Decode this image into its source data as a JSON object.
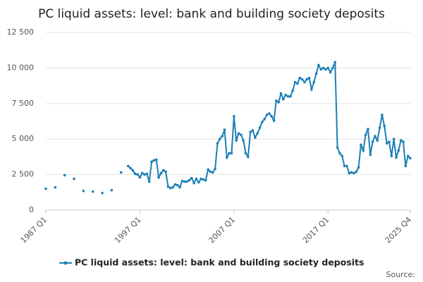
{
  "chart_data": {
    "type": "line",
    "title": "PC liquid assets: level: bank and building society deposits",
    "source": "Source:",
    "categories": [
      "1987 Q1",
      null,
      null,
      null,
      null,
      null,
      null,
      null,
      null,
      null,
      null,
      null,
      null,
      null,
      null,
      null,
      null,
      null,
      null,
      null,
      null,
      null,
      null,
      null,
      null,
      null,
      null,
      null,
      null,
      null,
      null,
      null,
      null,
      null,
      null,
      null,
      null,
      null,
      null,
      null,
      "1997 Q1",
      null,
      null,
      null,
      null,
      null,
      null,
      null,
      null,
      null,
      null,
      null,
      null,
      null,
      null,
      null,
      null,
      null,
      null,
      null,
      null,
      null,
      null,
      null,
      null,
      null,
      null,
      null,
      null,
      null,
      null,
      null,
      null,
      null,
      null,
      null,
      null,
      null,
      null,
      null,
      "2007 Q1",
      null,
      null,
      null,
      null,
      null,
      null,
      null,
      null,
      null,
      null,
      null,
      null,
      null,
      null,
      null,
      null,
      null,
      null,
      null,
      null,
      null,
      null,
      null,
      null,
      null,
      null,
      null,
      null,
      null,
      null,
      null,
      null,
      null,
      null,
      null,
      null,
      null,
      null,
      null,
      "2017 Q1",
      null,
      null,
      null,
      null,
      null,
      null,
      null,
      null,
      null,
      null,
      null,
      null,
      null,
      null,
      null,
      null,
      null,
      null,
      null,
      null,
      null,
      null,
      null,
      null,
      null,
      null,
      null,
      null,
      null,
      null,
      null,
      null,
      null,
      null,
      "2025 Q4"
    ],
    "series": [
      {
        "name": "PC liquid assets: level: bank and building society deposits",
        "color": "#1a80b6",
        "values": [
          1500,
          null,
          null,
          null,
          1600,
          null,
          null,
          null,
          2450,
          null,
          null,
          null,
          2200,
          null,
          null,
          null,
          1350,
          null,
          null,
          null,
          1300,
          null,
          null,
          null,
          1200,
          null,
          null,
          null,
          1400,
          null,
          null,
          null,
          2650,
          null,
          null,
          3100,
          2950,
          2800,
          2550,
          2500,
          2300,
          2600,
          2500,
          2550,
          2000,
          3400,
          3500,
          3550,
          2300,
          2600,
          2800,
          2700,
          1650,
          1550,
          1600,
          1800,
          1750,
          1600,
          2050,
          2000,
          2000,
          2100,
          2250,
          1900,
          2200,
          1950,
          2200,
          2150,
          2100,
          2850,
          2700,
          2650,
          2900,
          4700,
          5000,
          5200,
          5650,
          3700,
          4000,
          4000,
          6600,
          4900,
          5400,
          5300,
          4900,
          4000,
          3750,
          5500,
          5600,
          5100,
          5400,
          5800,
          6200,
          6400,
          6700,
          6800,
          6600,
          6300,
          7700,
          7600,
          8200,
          7800,
          8100,
          8000,
          8000,
          8400,
          9000,
          8900,
          9300,
          9200,
          9000,
          9200,
          9300,
          8500,
          9000,
          9600,
          10200,
          9900,
          10000,
          9900,
          10000,
          9700,
          10000,
          10400,
          4400,
          4000,
          3800,
          3100,
          3100,
          2600,
          2650,
          2600,
          2700,
          3000,
          4600,
          4200,
          5300,
          5700,
          3900,
          4800,
          5200,
          4900,
          5800,
          6700,
          5900,
          4700,
          4800,
          3800,
          5000,
          3700,
          4200,
          4900,
          4800,
          3100,
          3800,
          3650
        ]
      }
    ],
    "ylim": [
      0,
      12500
    ],
    "yticks": [
      0,
      {
        "value": 2500,
        "label": "2 500"
      },
      {
        "value": 5000,
        "label": "5 000"
      },
      {
        "value": 7500,
        "label": "7 500"
      },
      {
        "value": 10000,
        "label": "10 000"
      },
      {
        "value": 12500,
        "label": "12 500"
      }
    ],
    "grid": true
  }
}
